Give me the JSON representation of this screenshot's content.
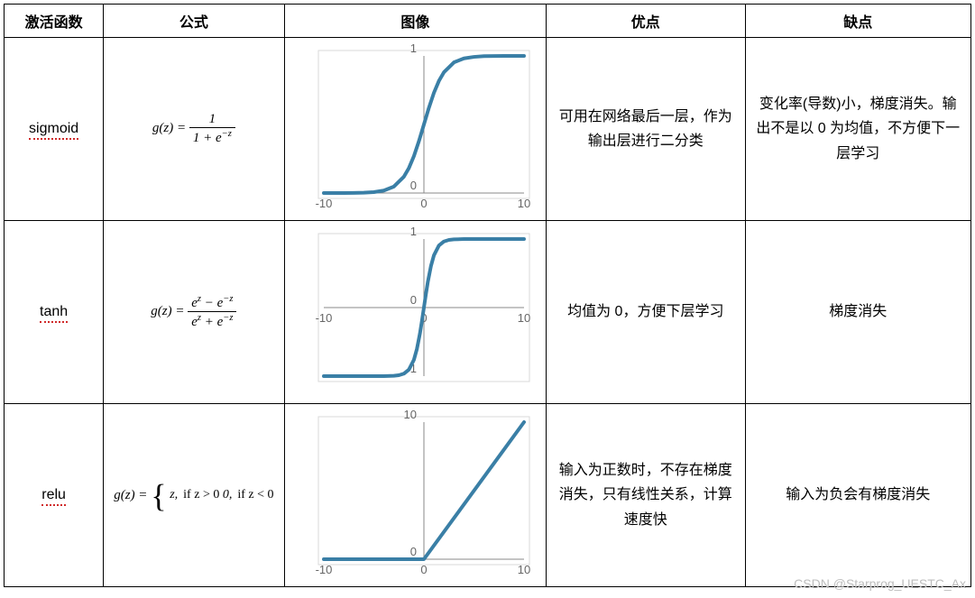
{
  "headers": {
    "c0": "激活函数",
    "c1": "公式",
    "c2": "图像",
    "c3": "优点",
    "c4": "缺点"
  },
  "rows": {
    "sigmoid": {
      "name": "sigmoid",
      "formula_prefix": "g(z) = ",
      "frac_num": "1",
      "frac_den_html": "1 + e<sup>−z</sup>",
      "advantage": "可用在网络最后一层，作为输出层进行二分类",
      "disadvantage": "变化率(导数)小，梯度消失。输出不是以 0 为均值，不方便下一层学习"
    },
    "tanh": {
      "name": "tanh",
      "formula_prefix": "g(z) = ",
      "frac_num_html": "e<sup>z</sup> − e<sup>−z</sup>",
      "frac_den_html": "e<sup>z</sup> + e<sup>−z</sup>",
      "advantage": "均值为 0，方便下层学习",
      "disadvantage": "梯度消失"
    },
    "relu": {
      "name": "relu",
      "formula_prefix": "g(z) = ",
      "piece1_val": "z,",
      "piece1_cond": "if z > 0",
      "piece2_val": "0,",
      "piece2_cond": "if z < 0",
      "advantage": "输入为正数时，不存在梯度消失，只有线性关系，计算速度快",
      "disadvantage": "输入为负会有梯度消失"
    }
  },
  "charts": {
    "sigmoid": {
      "type": "line",
      "xlim": [
        -10,
        10
      ],
      "ylim": [
        0,
        1
      ],
      "xtick_labels": [
        "-10",
        "0",
        "10"
      ],
      "ytick_labels": [
        "0",
        "1"
      ],
      "line_color": "#3a7fa6",
      "line_width": 4,
      "axis_color": "#888888",
      "label_color": "#666666",
      "label_fontsize": 13,
      "background_color": "#ffffff",
      "border_color": "#d8d8d8",
      "data": [
        [
          -10,
          5e-05
        ],
        [
          -9,
          0.0001
        ],
        [
          -8,
          0.0003
        ],
        [
          -7,
          0.0009
        ],
        [
          -6,
          0.0025
        ],
        [
          -5,
          0.0067
        ],
        [
          -4,
          0.018
        ],
        [
          -3,
          0.047
        ],
        [
          -2,
          0.119
        ],
        [
          -1.5,
          0.182
        ],
        [
          -1,
          0.269
        ],
        [
          -0.5,
          0.378
        ],
        [
          0,
          0.5
        ],
        [
          0.5,
          0.622
        ],
        [
          1,
          0.731
        ],
        [
          1.5,
          0.818
        ],
        [
          2,
          0.881
        ],
        [
          3,
          0.953
        ],
        [
          4,
          0.982
        ],
        [
          5,
          0.993
        ],
        [
          6,
          0.998
        ],
        [
          7,
          0.999
        ],
        [
          8,
          0.9997
        ],
        [
          9,
          0.9999
        ],
        [
          10,
          0.99995
        ]
      ]
    },
    "tanh": {
      "type": "line",
      "xlim": [
        -10,
        10
      ],
      "ylim": [
        -1,
        1
      ],
      "xtick_labels": [
        "-10",
        "0",
        "10"
      ],
      "ytick_labels": [
        "-1",
        "0",
        "1"
      ],
      "line_color": "#3a7fa6",
      "line_width": 4,
      "axis_color": "#888888",
      "label_color": "#666666",
      "label_fontsize": 13,
      "background_color": "#ffffff",
      "border_color": "#d8d8d8",
      "data": [
        [
          -10,
          -1
        ],
        [
          -5,
          -0.9999
        ],
        [
          -4,
          -0.9993
        ],
        [
          -3,
          -0.995
        ],
        [
          -2.5,
          -0.987
        ],
        [
          -2,
          -0.964
        ],
        [
          -1.5,
          -0.905
        ],
        [
          -1,
          -0.762
        ],
        [
          -0.7,
          -0.604
        ],
        [
          -0.4,
          -0.38
        ],
        [
          -0.2,
          -0.197
        ],
        [
          0,
          0
        ],
        [
          0.2,
          0.197
        ],
        [
          0.4,
          0.38
        ],
        [
          0.7,
          0.604
        ],
        [
          1,
          0.762
        ],
        [
          1.5,
          0.905
        ],
        [
          2,
          0.964
        ],
        [
          2.5,
          0.987
        ],
        [
          3,
          0.995
        ],
        [
          4,
          0.9993
        ],
        [
          5,
          0.9999
        ],
        [
          10,
          1
        ]
      ]
    },
    "relu": {
      "type": "line",
      "xlim": [
        -10,
        10
      ],
      "ylim": [
        0,
        10
      ],
      "xtick_labels": [
        "-10",
        "0",
        "10"
      ],
      "ytick_labels": [
        "0",
        "10"
      ],
      "line_color": "#3a7fa6",
      "line_width": 4,
      "axis_color": "#888888",
      "label_color": "#666666",
      "label_fontsize": 13,
      "background_color": "#ffffff",
      "border_color": "#d8d8d8",
      "data": [
        [
          -10,
          0
        ],
        [
          -0.01,
          0
        ],
        [
          0,
          0
        ],
        [
          10,
          10
        ]
      ]
    }
  },
  "watermark": "CSDN @Starprog_UESTC_Ax"
}
